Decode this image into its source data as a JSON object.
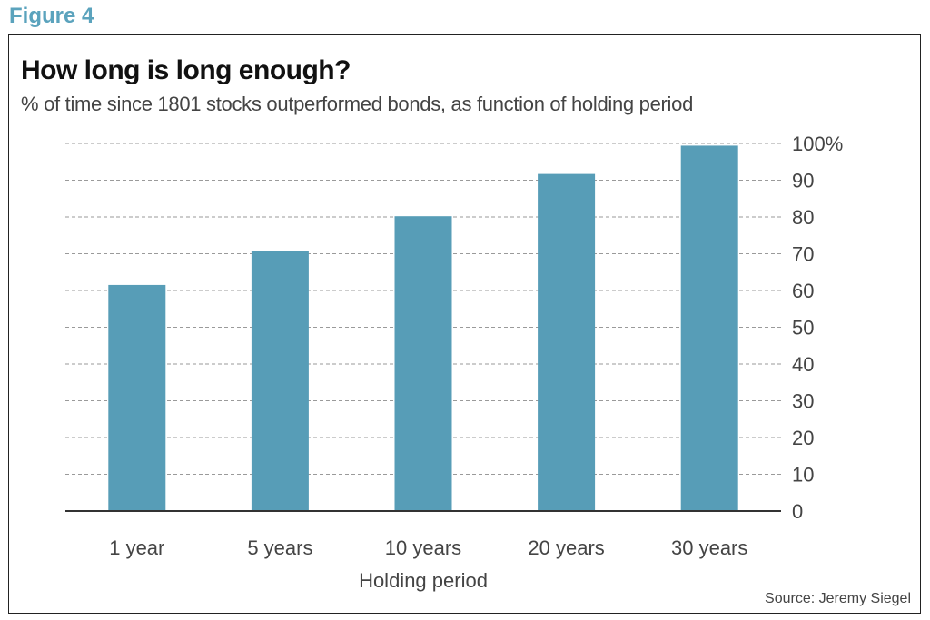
{
  "figure_label": "Figure 4",
  "source": "Source: Jeremy Siegel",
  "chart_data": {
    "type": "bar",
    "title": "How long is long enough?",
    "subtitle": "% of time since 1801 stocks outperformed bonds, as function of holding period",
    "xlabel": "Holding period",
    "ylabel": "",
    "categories": [
      "1 year",
      "5 years",
      "10 years",
      "20 years",
      "30 years"
    ],
    "values": [
      61.5,
      70.8,
      80.2,
      91.7,
      99.4
    ],
    "ylim": [
      0,
      100
    ],
    "yticks": [
      0,
      10,
      20,
      30,
      40,
      50,
      60,
      70,
      80,
      90,
      100
    ],
    "ytick_labels": [
      "0",
      "10",
      "20",
      "30",
      "40",
      "50",
      "60",
      "70",
      "80",
      "90",
      "100%"
    ],
    "y_axis_side": "right",
    "grid": true,
    "bar_color": "#579db7",
    "grid_color": "#9a9a9a",
    "axis_color": "#333333"
  }
}
